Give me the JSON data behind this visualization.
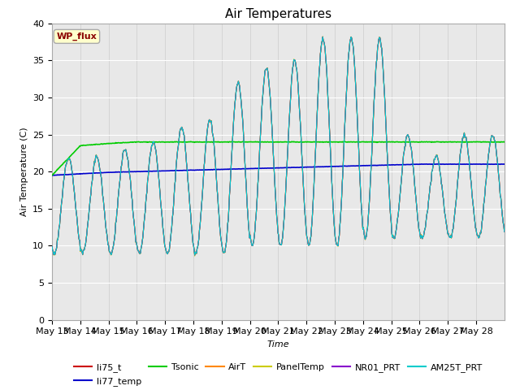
{
  "title": "Air Temperatures",
  "xlabel": "Time",
  "ylabel": "Air Temperature (C)",
  "ylim": [
    0,
    40
  ],
  "bg_color": "#e8e8e8",
  "x_tick_labels": [
    "May 13",
    "May 14",
    "May 15",
    "May 16",
    "May 17",
    "May 18",
    "May 19",
    "May 20",
    "May 21",
    "May 22",
    "May 23",
    "May 24",
    "May 25",
    "May 26",
    "May 27",
    "May 28"
  ],
  "legend_entries": [
    {
      "label": "li75_t",
      "color": "#cc0000"
    },
    {
      "label": "li77_temp",
      "color": "#0000cc"
    },
    {
      "label": "Tsonic",
      "color": "#00cc00"
    },
    {
      "label": "AirT",
      "color": "#ff8800"
    },
    {
      "label": "PanelTemp",
      "color": "#cccc00"
    },
    {
      "label": "NR01_PRT",
      "color": "#8800cc"
    },
    {
      "label": "AM25T_PRT",
      "color": "#00cccc"
    }
  ],
  "wp_flux_label": "WP_flux",
  "wp_flux_text_color": "#8b0000",
  "wp_flux_bg_color": "#ffffcc",
  "wp_flux_border_color": "#aaaaaa",
  "tsonic_values": [
    19.5,
    23.5,
    23.8,
    24.0,
    24.0,
    24.0,
    24.0,
    24.0,
    24.0,
    24.0,
    24.0,
    24.0,
    24.0,
    24.0,
    24.0,
    24.0
  ],
  "li77_values": [
    19.5,
    19.7,
    19.9,
    20.0,
    20.1,
    20.2,
    20.3,
    20.4,
    20.5,
    20.6,
    20.7,
    20.8,
    20.9,
    21.0,
    21.0,
    21.0
  ],
  "day_peaks": [
    22,
    22,
    23,
    24,
    26,
    27,
    32,
    34,
    35,
    38,
    38,
    38,
    25,
    22,
    25,
    25
  ],
  "day_nights": [
    9,
    9,
    9,
    9,
    9,
    9,
    9,
    10,
    10,
    10,
    10,
    11,
    11,
    11,
    11,
    11
  ]
}
